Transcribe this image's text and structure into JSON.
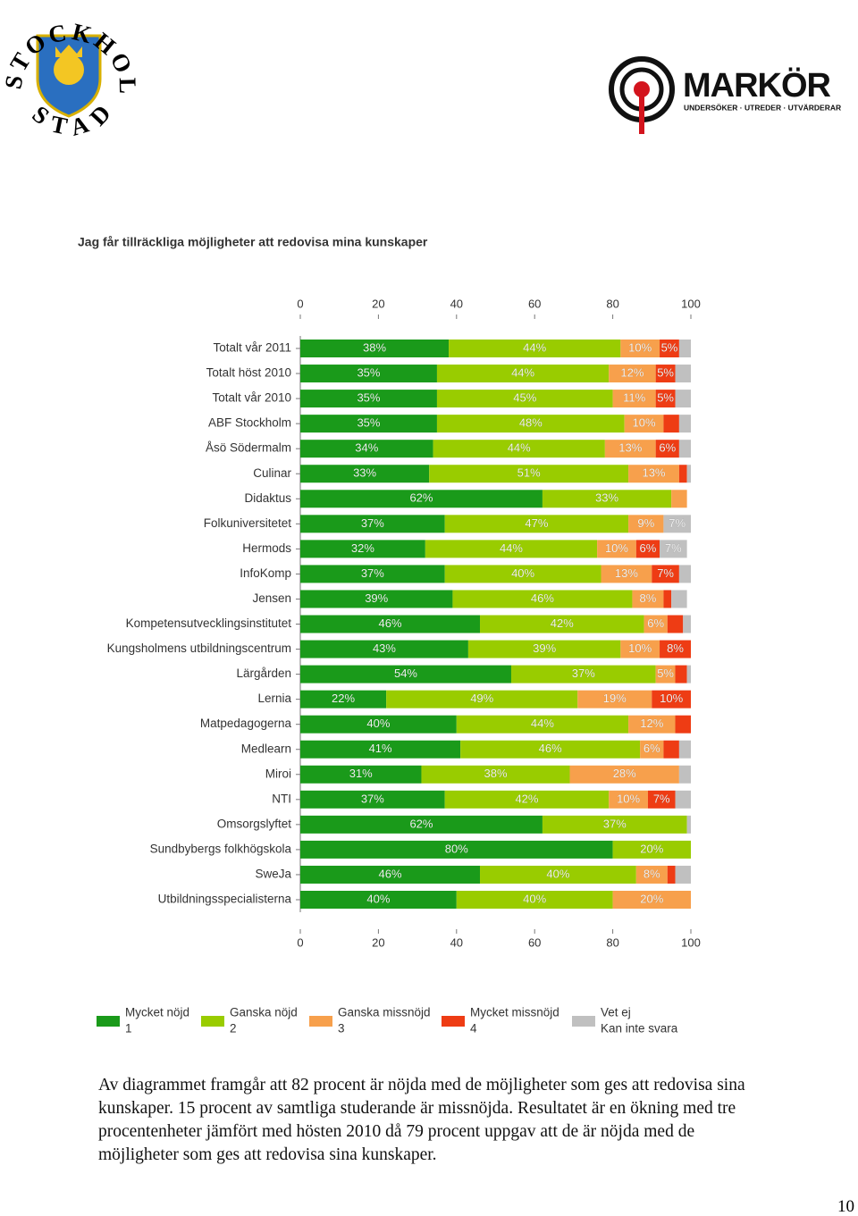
{
  "header": {
    "left_logo_top": "STOCKHOLMS",
    "left_logo_bottom": "STAD",
    "right_logo_name": "MARKÖR",
    "right_logo_tagline": "UNDERSÖKER · UTREDER · UTVÄRDERAR"
  },
  "chart_data": {
    "type": "stacked-bar-horizontal",
    "title": "Jag får tillräckliga möjligheter att redovisa mina kunskaper",
    "categories": [
      "Totalt vår 2011",
      "Totalt höst 2010",
      "Totalt vår 2010",
      "ABF Stockholm",
      "Åsö Södermalm",
      "Culinar",
      "Didaktus",
      "Folkuniversitetet",
      "Hermods",
      "InfoKomp",
      "Jensen",
      "Kompetensutvecklingsinstitutet",
      "Kungsholmens utbildningscentrum",
      "Lärgården",
      "Lernia",
      "Matpedagogerna",
      "Medlearn",
      "Miroi",
      "NTI",
      "Omsorgslyftet",
      "Sundbybergs folkhögskola",
      "SweJa",
      "Utbildningsspecialisterna"
    ],
    "series": [
      {
        "name": "Mycket nöjd",
        "code": "1",
        "color": "#1a9a1a",
        "values": [
          38,
          35,
          35,
          35,
          34,
          33,
          62,
          37,
          32,
          37,
          39,
          46,
          43,
          54,
          22,
          40,
          41,
          31,
          37,
          62,
          80,
          46,
          40
        ],
        "value_labels": [
          "38%",
          "35%",
          "35%",
          "35%",
          "34%",
          "33%",
          "62%",
          "37%",
          "32%",
          "37%",
          "39%",
          "46%",
          "43%",
          "54%",
          "22%",
          "40%",
          "41%",
          "31%",
          "37%",
          "62%",
          "80%",
          "46%",
          "40%"
        ]
      },
      {
        "name": "Ganska nöjd",
        "code": "2",
        "color": "#99cc00",
        "values": [
          44,
          44,
          45,
          48,
          44,
          51,
          33,
          47,
          44,
          40,
          46,
          42,
          39,
          37,
          49,
          44,
          46,
          38,
          42,
          37,
          20,
          40,
          40
        ],
        "value_labels": [
          "44%",
          "44%",
          "45%",
          "48%",
          "44%",
          "51%",
          "33%",
          "47%",
          "44%",
          "40%",
          "46%",
          "42%",
          "39%",
          "37%",
          "49%",
          "44%",
          "46%",
          "38%",
          "42%",
          "37%",
          "20%",
          "40%",
          "40%"
        ]
      },
      {
        "name": "Ganska missnöjd",
        "code": "3",
        "color": "#f7a04c",
        "values": [
          10,
          12,
          11,
          10,
          13,
          13,
          4,
          9,
          10,
          13,
          8,
          6,
          10,
          5,
          19,
          12,
          6,
          28,
          10,
          0,
          0,
          8,
          20
        ],
        "value_labels": [
          "10%",
          "12%",
          "11%",
          "10%",
          "13%",
          "13%",
          null,
          "9%",
          "10%",
          "13%",
          "8%",
          "6%",
          "10%",
          "5%",
          "19%",
          "12%",
          "6%",
          "28%",
          "10%",
          null,
          null,
          "8%",
          "20%"
        ]
      },
      {
        "name": "Mycket missnöjd",
        "code": "4",
        "color": "#ee3c14",
        "values": [
          5,
          5,
          5,
          4,
          6,
          2,
          0,
          0,
          6,
          7,
          2,
          4,
          8,
          3,
          10,
          4,
          4,
          0,
          7,
          0,
          0,
          2,
          0
        ],
        "value_labels": [
          "5%",
          "5%",
          "5%",
          null,
          "6%",
          null,
          null,
          null,
          "6%",
          "7%",
          null,
          null,
          "8%",
          null,
          "10%",
          null,
          null,
          null,
          "7%",
          null,
          null,
          null,
          null
        ]
      },
      {
        "name": "Vet ej",
        "code": "Kan inte svara",
        "color": "#c0c0c0",
        "values": [
          3,
          4,
          4,
          3,
          3,
          1,
          0,
          7,
          7,
          3,
          4,
          2,
          0,
          1,
          0,
          0,
          3,
          3,
          4,
          1,
          0,
          4,
          0
        ],
        "value_labels": [
          null,
          null,
          null,
          null,
          null,
          null,
          null,
          "7%",
          "7%",
          null,
          null,
          null,
          null,
          null,
          null,
          null,
          null,
          null,
          null,
          null,
          null,
          null,
          null
        ]
      }
    ],
    "xlim": [
      0,
      100
    ],
    "xticks": [
      0,
      20,
      40,
      60,
      80,
      100
    ],
    "grid": false
  },
  "paragraph": "Av diagrammet framgår att 82 procent är nöjda med de möjligheter som ges att redovisa sina kunskaper. 15 procent av samtliga studerande är missnöjda. Resultatet är en ökning med tre procentenheter jämfört med hösten 2010 då 79 procent uppgav att de är nöjda med de möjligheter som ges att redovisa sina kunskaper.",
  "page_number": "10"
}
